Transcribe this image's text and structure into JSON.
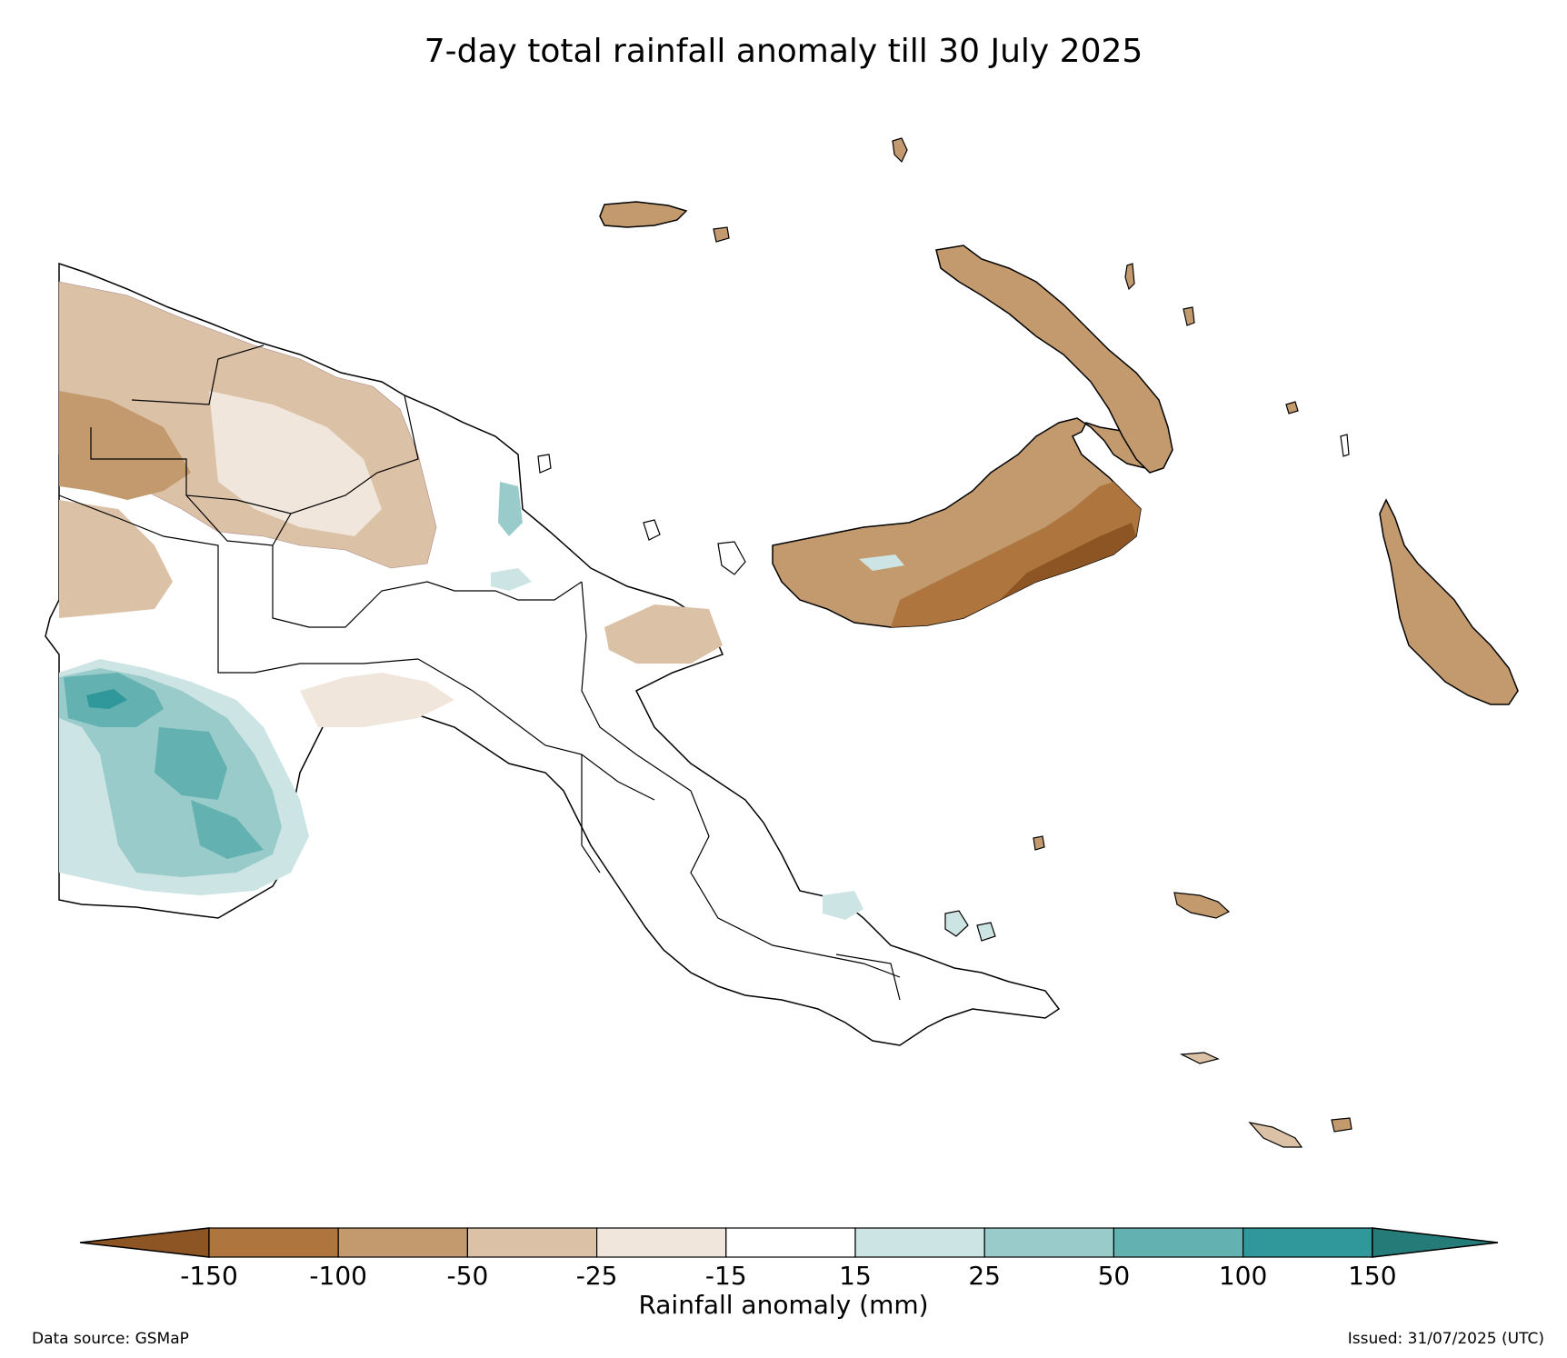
{
  "title": "7-day total rainfall anomaly till 30 July 2025",
  "colorbar": {
    "label": "Rainfall anomaly (mm)",
    "ticks": [
      "-150",
      "-100",
      "-50",
      "-25",
      "-15",
      "15",
      "25",
      "50",
      "100",
      "150"
    ],
    "bins": [
      {
        "range": "< -150",
        "color": "#8c5523"
      },
      {
        "range": "-150 to -100",
        "color": "#ae753e"
      },
      {
        "range": "-100 to -50",
        "color": "#c39a6e"
      },
      {
        "range": "-50 to -25",
        "color": "#dbc1a5"
      },
      {
        "range": "-25 to -15",
        "color": "#f0e6dc"
      },
      {
        "range": "-15 to 15",
        "color": "#ffffff"
      },
      {
        "range": "15 to 25",
        "color": "#cce4e3"
      },
      {
        "range": "25 to 50",
        "color": "#99cbca"
      },
      {
        "range": "50 to 100",
        "color": "#63b1b0"
      },
      {
        "range": "100 to 150",
        "color": "#30979a"
      },
      {
        "range": "> 150",
        "color": "#257b78"
      }
    ]
  },
  "footer": {
    "source": "Data source: GSMaP",
    "issued": "Issued: 31/07/2025 (UTC)"
  }
}
